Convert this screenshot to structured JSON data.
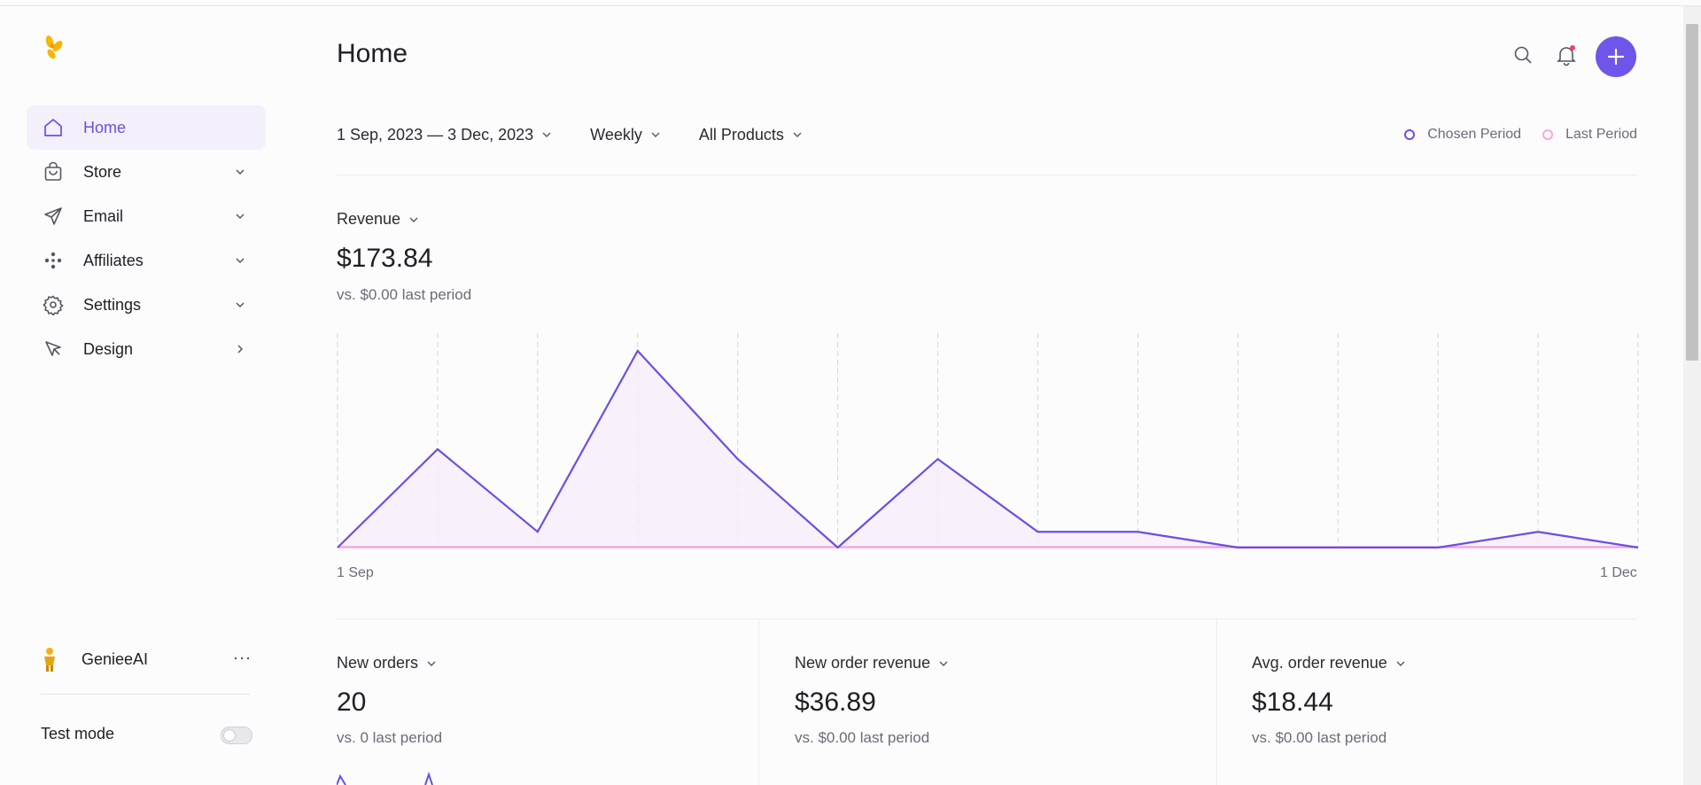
{
  "app": {
    "accent": "#6c4ee3",
    "last_period_color": "#f5a8de"
  },
  "sidebar": {
    "items": [
      {
        "label": "Home",
        "icon": "home-icon",
        "active": true,
        "chevron": ""
      },
      {
        "label": "Store",
        "icon": "bag-icon",
        "active": false,
        "chevron": "down"
      },
      {
        "label": "Email",
        "icon": "send-icon",
        "active": false,
        "chevron": "down"
      },
      {
        "label": "Affiliates",
        "icon": "network-icon",
        "active": false,
        "chevron": "down"
      },
      {
        "label": "Settings",
        "icon": "gear-icon",
        "active": false,
        "chevron": "down"
      },
      {
        "label": "Design",
        "icon": "cursor-icon",
        "active": false,
        "chevron": "right"
      }
    ],
    "account_name": "GenieeAI",
    "account_more": "···",
    "test_mode_label": "Test mode",
    "test_mode_on": false
  },
  "header": {
    "title": "Home",
    "notification_dot_color": "#f43f5e"
  },
  "filters": {
    "date_range": "1 Sep, 2023 — 3 Dec, 2023",
    "interval": "Weekly",
    "products": "All Products"
  },
  "legend": {
    "chosen": "Chosen Period",
    "last": "Last Period"
  },
  "revenue": {
    "title": "Revenue",
    "value": "$173.84",
    "comparison": "vs. $0.00 last period"
  },
  "chart_data": {
    "type": "area",
    "x_start_label": "1 Sep",
    "x_end_label": "1 Dec",
    "series": [
      {
        "name": "Chosen Period",
        "values": [
          0,
          50,
          8,
          100,
          45,
          0,
          45,
          8,
          8,
          0,
          0,
          0,
          8,
          0
        ]
      },
      {
        "name": "Last Period",
        "values": [
          0,
          0,
          0,
          0,
          0,
          0,
          0,
          0,
          0,
          0,
          0,
          0,
          0,
          0
        ]
      }
    ],
    "grid": "vertical-dashed"
  },
  "cards": [
    {
      "title": "New orders",
      "value": "20",
      "comparison": "vs. 0 last period"
    },
    {
      "title": "New order revenue",
      "value": "$36.89",
      "comparison": "vs. $0.00 last period"
    },
    {
      "title": "Avg. order revenue",
      "value": "$18.44",
      "comparison": "vs. $0.00 last period"
    }
  ]
}
